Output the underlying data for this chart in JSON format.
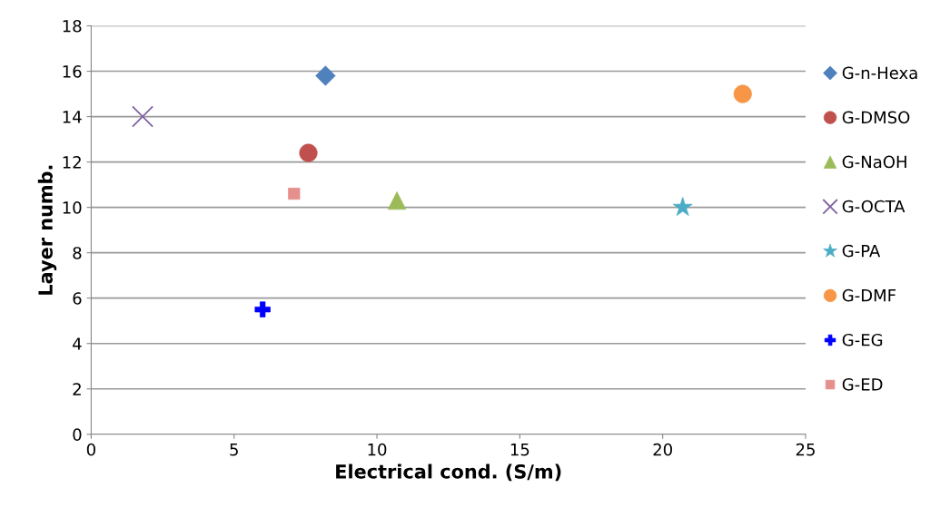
{
  "chart_data": {
    "type": "scatter",
    "xlabel": "Electrical cond. (S/m)",
    "ylabel": "Layer numb.",
    "xlim": [
      0,
      25
    ],
    "xticks": [
      0,
      5,
      10,
      15,
      20,
      25
    ],
    "ylim": [
      0,
      18
    ],
    "yticks": [
      0,
      2,
      4,
      6,
      8,
      10,
      12,
      14,
      16,
      18
    ],
    "grid": "y",
    "legend": "right",
    "series": [
      {
        "name": "G-n-Hexa",
        "color": "#4f81bd",
        "marker": "diamond",
        "x": [
          8.2
        ],
        "values": [
          15.8
        ]
      },
      {
        "name": "G-DMSO",
        "color": "#c0504d",
        "marker": "circle",
        "x": [
          7.6
        ],
        "values": [
          12.4
        ]
      },
      {
        "name": "G-NaOH",
        "color": "#9bbb59",
        "marker": "triangle",
        "x": [
          10.7
        ],
        "values": [
          10.3
        ]
      },
      {
        "name": "G-OCTA",
        "color": "#8064a2",
        "marker": "cross",
        "x": [
          1.8
        ],
        "values": [
          14.0
        ]
      },
      {
        "name": "G-PA",
        "color": "#4bacc6",
        "marker": "star",
        "x": [
          20.7
        ],
        "values": [
          10.0
        ]
      },
      {
        "name": "G-DMF",
        "color": "#f79646",
        "marker": "circle",
        "x": [
          22.8
        ],
        "values": [
          15.0
        ]
      },
      {
        "name": "G-EG",
        "color": "#0000ff",
        "x": [
          6.0
        ],
        "values": [
          5.5
        ]
      },
      {
        "name": "G-ED",
        "color": "#e6908e",
        "marker": "square",
        "x": [
          7.1
        ],
        "values": [
          10.6
        ]
      }
    ]
  }
}
